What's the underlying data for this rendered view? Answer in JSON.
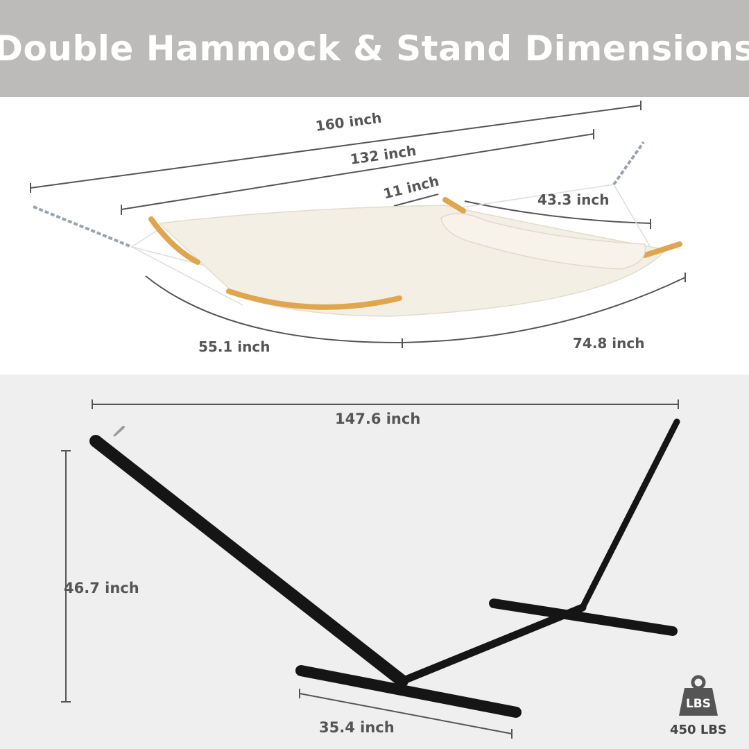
{
  "header": {
    "title": "Double Hammock & Stand Dimensions"
  },
  "hammock": {
    "total_length": "160 inch",
    "bed_length": "132 inch",
    "pillow_gap": "11 inch",
    "pillow_length": "43.3 inch",
    "spreader_left": "55.1 inch",
    "spreader_right": "74.8 inch"
  },
  "stand": {
    "length": "147.6 inch",
    "height": "46.7 inch",
    "base_width": "35.4 inch"
  },
  "capacity": {
    "icon": "weight-icon",
    "icon_label": "LBS",
    "value": "450 LBS"
  },
  "colors": {
    "header_bg": "#bdbbb9",
    "stand": "#151515",
    "fabric": "#f3efe4",
    "wood": "#e0a64f",
    "text": "#555555"
  }
}
